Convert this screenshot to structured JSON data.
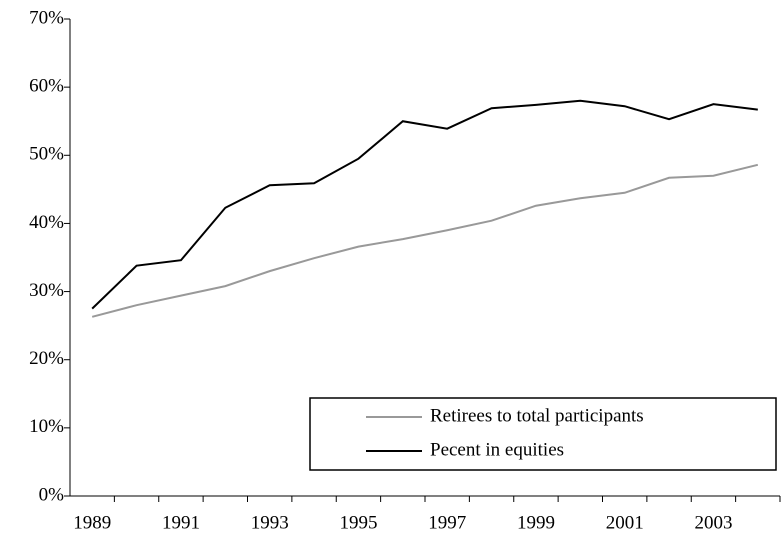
{
  "chart_data": {
    "type": "line",
    "categories": [
      "1989",
      null,
      "1991",
      null,
      "1993",
      null,
      "1995",
      null,
      "1997",
      null,
      "1999",
      null,
      "2001",
      null,
      "2003",
      null
    ],
    "series": [
      {
        "name": "Retirees to total participants",
        "color": "#999999",
        "values": [
          26.3,
          28.0,
          29.4,
          30.8,
          33.0,
          34.9,
          36.6,
          37.7,
          39.0,
          40.4,
          42.6,
          43.7,
          44.5,
          46.7,
          47.0,
          48.6
        ]
      },
      {
        "name": "Pecent in equities",
        "color": "#000000",
        "values": [
          27.5,
          33.8,
          34.6,
          42.3,
          45.6,
          45.9,
          49.5,
          55.0,
          53.9,
          56.9,
          57.4,
          58.0,
          57.2,
          55.3,
          57.5,
          56.7
        ]
      }
    ],
    "ylim": [
      0,
      70
    ],
    "yticks": [
      {
        "value": 0,
        "label": "0%"
      },
      {
        "value": 10,
        "label": "10%"
      },
      {
        "value": 20,
        "label": "20%"
      },
      {
        "value": 30,
        "label": "30%"
      },
      {
        "value": 40,
        "label": "40%"
      },
      {
        "value": 50,
        "label": "50%"
      },
      {
        "value": 60,
        "label": "60%"
      },
      {
        "value": 70,
        "label": "70%"
      }
    ],
    "grid": false,
    "legend": "lower-right"
  }
}
